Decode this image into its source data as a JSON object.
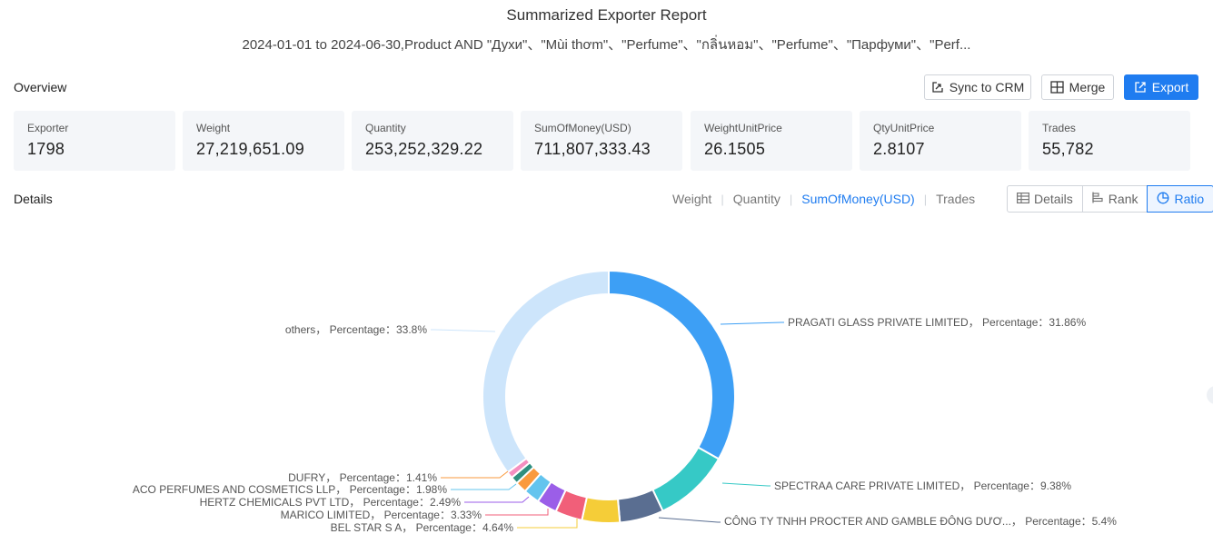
{
  "header": {
    "title": "Summarized Exporter Report",
    "subtitle": "2024-01-01 to 2024-06-30,Product AND \"Духи\"、\"Mùi thơm\"、\"Perfume\"、\"กลิ่นหอม\"、\"Perfume\"、\"Парфуми\"、\"Perf..."
  },
  "overview": {
    "label": "Overview",
    "buttons": {
      "sync": "Sync to CRM",
      "merge": "Merge",
      "export": "Export"
    },
    "stats": [
      {
        "label": "Exporter",
        "value": "1798"
      },
      {
        "label": "Weight",
        "value": "27,219,651.09"
      },
      {
        "label": "Quantity",
        "value": "253,252,329.22"
      },
      {
        "label": "SumOfMoney(USD)",
        "value": "711,807,333.43"
      },
      {
        "label": "WeightUnitPrice",
        "value": "26.1505"
      },
      {
        "label": "QtyUnitPrice",
        "value": "2.8107"
      },
      {
        "label": "Trades",
        "value": "55,782"
      }
    ]
  },
  "details": {
    "label": "Details",
    "metric_tabs": [
      "Weight",
      "Quantity",
      "SumOfMoney(USD)",
      "Trades"
    ],
    "active_metric": "SumOfMoney(USD)",
    "view_buttons": [
      "Details",
      "Rank",
      "Ratio"
    ],
    "active_view": "Ratio"
  },
  "chart_data": {
    "type": "pie",
    "variant": "donut",
    "label_format": "{name}， Percentage：{value}%",
    "slices": [
      {
        "name": "PRAGATI GLASS PRIVATE LIMITED",
        "value": 31.86,
        "color": "#3d9ff5"
      },
      {
        "name": "SPECTRAA CARE PRIVATE LIMITED",
        "value": 9.38,
        "color": "#36c9c6"
      },
      {
        "name": "CÔNG TY TNHH PROCTER AND GAMBLE ĐÔNG DƯƠ...",
        "value": 5.4,
        "color": "#5a6e91"
      },
      {
        "name": "BEL STAR S A",
        "value": 4.64,
        "color": "#f5cd38"
      },
      {
        "name": "MARICO LIMITED",
        "value": 3.33,
        "color": "#f15f79"
      },
      {
        "name": "HERTZ CHEMICALS PVT LTD",
        "value": 2.49,
        "color": "#9b5ee8"
      },
      {
        "name": "ACO PERFUMES AND COSMETICS LLP",
        "value": 1.98,
        "color": "#63c4ee"
      },
      {
        "name": "DUFRY",
        "value": 1.41,
        "color": "#fa9a3d"
      },
      {
        "name": "",
        "value": 0.9,
        "color": "#2f8f7e"
      },
      {
        "name": "",
        "value": 0.8,
        "color": "#f58ec0"
      },
      {
        "name": "others",
        "value": 33.8,
        "color": "#cde5fb"
      }
    ]
  }
}
